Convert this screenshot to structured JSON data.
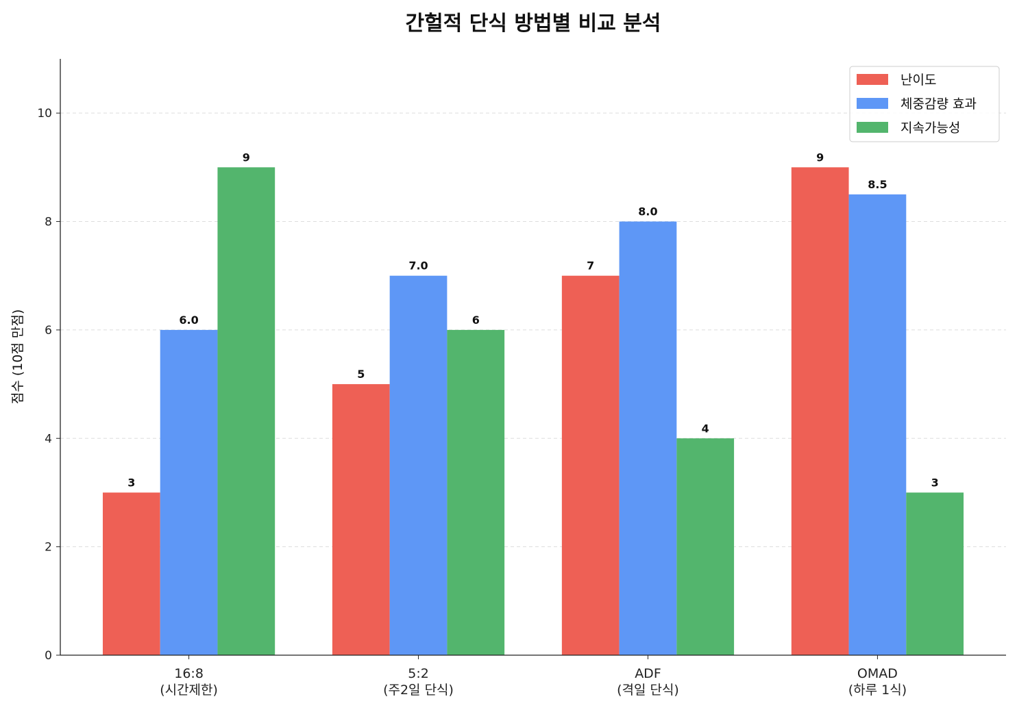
{
  "chart_data": {
    "type": "bar",
    "title": "간헐적 단식 방법별 비교 분석",
    "xlabel": "",
    "ylabel": "점수 (10점 만점)",
    "categories": [
      [
        "16:8",
        "(시간제한)"
      ],
      [
        "5:2",
        "(주2일 단식)"
      ],
      [
        "ADF",
        "(격일 단식)"
      ],
      [
        "OMAD",
        "(하루 1식)"
      ]
    ],
    "series": [
      {
        "name": "난이도",
        "values": [
          3,
          5,
          7,
          9
        ],
        "color": "#ee6055",
        "labels": [
          "3",
          "5",
          "7",
          "9"
        ]
      },
      {
        "name": "체중감량 효과",
        "values": [
          6.0,
          7.0,
          8.0,
          8.5
        ],
        "color": "#5e97f6",
        "labels": [
          "6.0",
          "7.0",
          "8.0",
          "8.5"
        ]
      },
      {
        "name": "지속가능성",
        "values": [
          9,
          6,
          4,
          3
        ],
        "color": "#53b56d",
        "labels": [
          "9",
          "6",
          "4",
          "3"
        ]
      }
    ],
    "ylim": [
      0,
      11
    ],
    "yticks": [
      0,
      2,
      4,
      6,
      8,
      10
    ],
    "grid": "y-dashed",
    "legend": "top-right"
  }
}
